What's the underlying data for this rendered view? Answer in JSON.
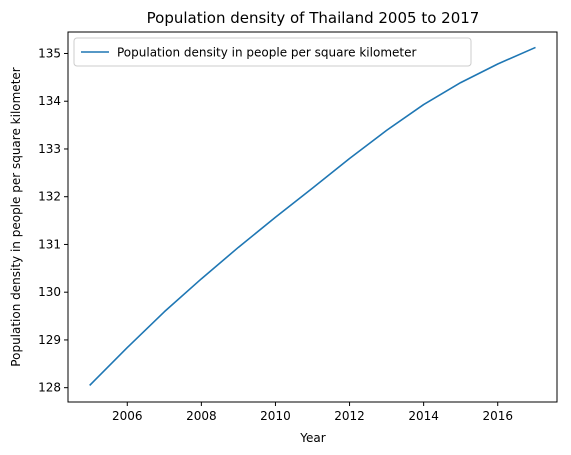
{
  "chart_data": {
    "type": "line",
    "title": "Population density of Thailand 2005 to 2017",
    "xlabel": "Year",
    "ylabel": "Population density in people per square kilometer",
    "x": [
      2005,
      2006,
      2007,
      2008,
      2009,
      2010,
      2011,
      2012,
      2013,
      2014,
      2015,
      2016,
      2017
    ],
    "series": [
      {
        "name": "Population density in people per square kilometer",
        "color": "#1f77b4",
        "values": [
          128.06,
          128.84,
          129.59,
          130.28,
          130.94,
          131.57,
          132.18,
          132.8,
          133.39,
          133.93,
          134.39,
          134.78,
          135.12
        ]
      }
    ],
    "xticks": [
      2006,
      2008,
      2010,
      2012,
      2014,
      2016
    ],
    "yticks": [
      128,
      129,
      130,
      131,
      132,
      133,
      134,
      135
    ],
    "xlim": [
      2004.4,
      2017.6
    ],
    "ylim": [
      127.7,
      135.45
    ],
    "grid": false,
    "legend": "top-left"
  }
}
